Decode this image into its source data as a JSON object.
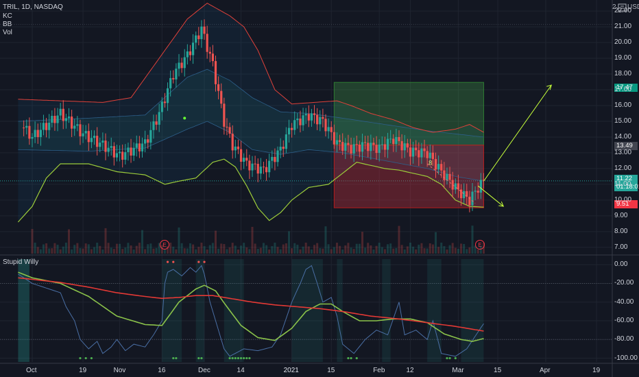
{
  "header": {
    "symbol": "TRIL, 1D, NASDAQ",
    "indicators": [
      "KC",
      "BB",
      "Vol"
    ],
    "currency": "USD",
    "scale_mark": "2"
  },
  "oscillator": {
    "name": "Stupid Willy"
  },
  "earnings_marker": "E",
  "price_tags": {
    "target": "17.47",
    "entry": "13.49",
    "current": "11.22",
    "countdown": "01:18:01",
    "stop": "9.51"
  },
  "position_annotation": "8",
  "chart_data": [
    {
      "type": "candlestick",
      "ylim": [
        6.6,
        22.7
      ],
      "y_ticks": [
        "7.00",
        "8.00",
        "9.00",
        "10.00",
        "11.00",
        "12.00",
        "13.00",
        "14.00",
        "15.00",
        "16.00",
        "17.00",
        "18.00",
        "19.00",
        "20.00",
        "21.00",
        "22.00"
      ],
      "x_ticks": [
        {
          "label": "Oct",
          "day": 0
        },
        {
          "label": "19",
          "day": 18
        },
        {
          "label": "Nov",
          "day": 31
        },
        {
          "label": "16",
          "day": 46
        },
        {
          "label": "Dec",
          "day": 61
        },
        {
          "label": "14",
          "day": 74
        },
        {
          "label": "2021",
          "day": 92
        },
        {
          "label": "15",
          "day": 106
        },
        {
          "label": "Feb",
          "day": 123
        },
        {
          "label": "12",
          "day": 134
        },
        {
          "label": "Mar",
          "day": 151
        },
        {
          "label": "15",
          "day": 165
        },
        {
          "label": "Apr",
          "day": 182
        },
        {
          "label": "19",
          "day": 200
        }
      ],
      "last_day": 160,
      "close_anchors": [
        [
          -5,
          15.0
        ],
        [
          0,
          14.0
        ],
        [
          10,
          15.5
        ],
        [
          18,
          14.2
        ],
        [
          25,
          13.5
        ],
        [
          31,
          12.8
        ],
        [
          40,
          13.6
        ],
        [
          45,
          15.5
        ],
        [
          50,
          18.0
        ],
        [
          55,
          19.2
        ],
        [
          60,
          20.9
        ],
        [
          64,
          18.6
        ],
        [
          68,
          15.0
        ],
        [
          71,
          13.5
        ],
        [
          76,
          12.3
        ],
        [
          82,
          11.9
        ],
        [
          88,
          13.2
        ],
        [
          92,
          14.8
        ],
        [
          98,
          15.4
        ],
        [
          103,
          15.0
        ],
        [
          108,
          13.6
        ],
        [
          113,
          13.3
        ],
        [
          118,
          13.5
        ],
        [
          123,
          13.3
        ],
        [
          128,
          13.9
        ],
        [
          134,
          13.1
        ],
        [
          140,
          13.0
        ],
        [
          145,
          11.8
        ],
        [
          151,
          10.6
        ],
        [
          155,
          10.0
        ],
        [
          158,
          10.8
        ],
        [
          160,
          11.22
        ]
      ],
      "bollinger_upper_anchors": [
        [
          -5,
          16.4
        ],
        [
          10,
          16.3
        ],
        [
          25,
          16.2
        ],
        [
          35,
          16.5
        ],
        [
          45,
          19.0
        ],
        [
          55,
          21.5
        ],
        [
          62,
          22.5
        ],
        [
          70,
          21.7
        ],
        [
          75,
          21.0
        ],
        [
          80,
          19.5
        ],
        [
          86,
          17.0
        ],
        [
          92,
          16.1
        ],
        [
          100,
          16.2
        ],
        [
          108,
          16.3
        ],
        [
          113,
          16.0
        ],
        [
          120,
          15.5
        ],
        [
          128,
          15.1
        ],
        [
          135,
          14.6
        ],
        [
          142,
          14.3
        ],
        [
          150,
          14.5
        ],
        [
          155,
          14.8
        ],
        [
          158,
          14.5
        ],
        [
          160,
          14.3
        ]
      ],
      "bollinger_lower_anchors": [
        [
          -5,
          8.6
        ],
        [
          0,
          9.6
        ],
        [
          5,
          11.4
        ],
        [
          10,
          12.3
        ],
        [
          20,
          12.3
        ],
        [
          30,
          11.8
        ],
        [
          40,
          11.6
        ],
        [
          47,
          11.0
        ],
        [
          52,
          11.2
        ],
        [
          58,
          11.4
        ],
        [
          64,
          12.4
        ],
        [
          68,
          12.6
        ],
        [
          72,
          12.1
        ],
        [
          76,
          10.9
        ],
        [
          80,
          9.5
        ],
        [
          84,
          8.7
        ],
        [
          88,
          9.2
        ],
        [
          92,
          10.0
        ],
        [
          98,
          10.8
        ],
        [
          105,
          11.0
        ],
        [
          110,
          11.7
        ],
        [
          115,
          12.4
        ],
        [
          120,
          12.2
        ],
        [
          125,
          12.0
        ],
        [
          130,
          11.9
        ],
        [
          135,
          11.7
        ],
        [
          140,
          11.5
        ],
        [
          145,
          11.0
        ],
        [
          150,
          10.0
        ],
        [
          155,
          9.6
        ],
        [
          160,
          9.55
        ]
      ],
      "keltner_upper_anchors": [
        [
          -5,
          15.0
        ],
        [
          20,
          15.2
        ],
        [
          40,
          15.4
        ],
        [
          55,
          17.8
        ],
        [
          62,
          18.3
        ],
        [
          70,
          17.6
        ],
        [
          78,
          16.5
        ],
        [
          88,
          15.6
        ],
        [
          98,
          15.5
        ],
        [
          110,
          15.2
        ],
        [
          125,
          14.8
        ],
        [
          140,
          14.4
        ],
        [
          150,
          14.2
        ],
        [
          160,
          14.0
        ]
      ],
      "keltner_lower_anchors": [
        [
          -5,
          13.2
        ],
        [
          20,
          13.1
        ],
        [
          40,
          13.3
        ],
        [
          55,
          14.5
        ],
        [
          62,
          15.0
        ],
        [
          70,
          14.3
        ],
        [
          78,
          13.2
        ],
        [
          88,
          12.9
        ],
        [
          98,
          13.2
        ],
        [
          110,
          13.0
        ],
        [
          125,
          12.5
        ],
        [
          140,
          12.0
        ],
        [
          150,
          11.5
        ],
        [
          160,
          11.2
        ]
      ],
      "trade_box": {
        "start_day": 107,
        "end_day": 160,
        "entry": 13.49,
        "target": 17.47,
        "stop": 9.51
      },
      "projection_up": {
        "from": [
          160,
          11.2
        ],
        "to": [
          184,
          17.3
        ]
      },
      "projection_down": {
        "from": [
          158,
          10.9
        ],
        "to": [
          167,
          9.6
        ]
      }
    },
    {
      "type": "line",
      "title": "Stupid Willy",
      "ylim": [
        -104,
        6
      ],
      "y_ticks": [
        "0.00",
        "-20.00",
        "-40.00",
        "-60.00",
        "-80.00",
        "-100.00"
      ],
      "series": [
        {
          "color": "#4a6fa5",
          "anchors": [
            [
              -5,
              -10
            ],
            [
              0,
              -20
            ],
            [
              5,
              -25
            ],
            [
              10,
              -30
            ],
            [
              12,
              -45
            ],
            [
              15,
              -60
            ],
            [
              17,
              -80
            ],
            [
              20,
              -90
            ],
            [
              23,
              -82
            ],
            [
              25,
              -95
            ],
            [
              28,
              -88
            ],
            [
              30,
              -80
            ],
            [
              33,
              -92
            ],
            [
              36,
              -85
            ],
            [
              40,
              -88
            ],
            [
              43,
              -75
            ],
            [
              46,
              -60
            ],
            [
              47,
              -20
            ],
            [
              48,
              -8
            ],
            [
              50,
              -5
            ],
            [
              53,
              -12
            ],
            [
              56,
              -3
            ],
            [
              58,
              -8
            ],
            [
              60,
              -1
            ],
            [
              61,
              -10
            ],
            [
              63,
              -40
            ],
            [
              66,
              -70
            ],
            [
              68,
              -90
            ],
            [
              70,
              -98
            ],
            [
              75,
              -90
            ],
            [
              80,
              -92
            ],
            [
              85,
              -88
            ],
            [
              88,
              -75
            ],
            [
              92,
              -40
            ],
            [
              95,
              -20
            ],
            [
              97,
              -5
            ],
            [
              99,
              -1
            ],
            [
              101,
              -20
            ],
            [
              103,
              -40
            ],
            [
              106,
              -35
            ],
            [
              108,
              -55
            ],
            [
              110,
              -85
            ],
            [
              114,
              -95
            ],
            [
              118,
              -80
            ],
            [
              122,
              -70
            ],
            [
              126,
              -75
            ],
            [
              130,
              -40
            ],
            [
              132,
              -75
            ],
            [
              136,
              -70
            ],
            [
              140,
              -80
            ],
            [
              142,
              -60
            ],
            [
              145,
              -95
            ],
            [
              150,
              -98
            ],
            [
              154,
              -90
            ],
            [
              158,
              -72
            ],
            [
              160,
              -63
            ]
          ]
        },
        {
          "color": "#8bc34a",
          "anchors": [
            [
              -5,
              -8
            ],
            [
              0,
              -14
            ],
            [
              10,
              -20
            ],
            [
              20,
              -34
            ],
            [
              30,
              -55
            ],
            [
              40,
              -64
            ],
            [
              46,
              -65
            ],
            [
              52,
              -40
            ],
            [
              58,
              -26
            ],
            [
              61,
              -22
            ],
            [
              65,
              -28
            ],
            [
              69,
              -45
            ],
            [
              74,
              -65
            ],
            [
              80,
              -78
            ],
            [
              86,
              -81
            ],
            [
              92,
              -68
            ],
            [
              97,
              -50
            ],
            [
              102,
              -42
            ],
            [
              106,
              -42
            ],
            [
              110,
              -50
            ],
            [
              116,
              -60
            ],
            [
              122,
              -60
            ],
            [
              128,
              -58
            ],
            [
              134,
              -58
            ],
            [
              140,
              -62
            ],
            [
              146,
              -74
            ],
            [
              152,
              -80
            ],
            [
              156,
              -82
            ],
            [
              160,
              -79
            ]
          ]
        },
        {
          "color": "#e53935",
          "anchors": [
            [
              -5,
              -14
            ],
            [
              10,
              -19
            ],
            [
              20,
              -24
            ],
            [
              30,
              -30
            ],
            [
              40,
              -34
            ],
            [
              46,
              -36
            ],
            [
              52,
              -35
            ],
            [
              58,
              -33
            ],
            [
              64,
              -33
            ],
            [
              70,
              -36
            ],
            [
              78,
              -40
            ],
            [
              86,
              -43
            ],
            [
              94,
              -45
            ],
            [
              102,
              -47
            ],
            [
              110,
              -50
            ],
            [
              120,
              -55
            ],
            [
              130,
              -58
            ],
            [
              140,
              -62
            ],
            [
              150,
              -66
            ],
            [
              156,
              -69
            ],
            [
              160,
              -71
            ]
          ]
        }
      ],
      "signal_days": [
        17,
        19,
        21,
        50,
        51,
        59,
        60,
        70,
        71,
        72,
        73,
        74,
        75,
        76,
        77,
        112,
        113,
        115,
        147,
        148,
        150
      ]
    }
  ]
}
